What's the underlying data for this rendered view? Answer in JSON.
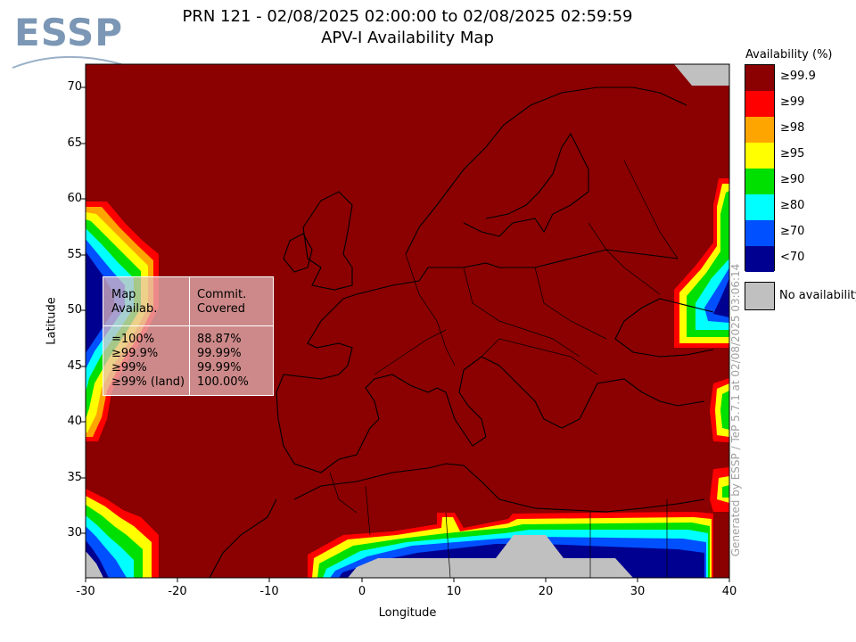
{
  "header": {
    "logo_text": "ESSP",
    "title_line1": "PRN 121 - 02/08/2025 02:00:00 to 02/08/2025 02:59:59",
    "title_line2": "APV-I Availability Map"
  },
  "axes": {
    "xlabel": "Longitude",
    "ylabel": "Latitude",
    "x_ticks": [
      "-30",
      "-20",
      "-10",
      "0",
      "10",
      "20",
      "30",
      "40"
    ],
    "y_ticks": [
      "70",
      "65",
      "60",
      "55",
      "50",
      "45",
      "40",
      "35",
      "30"
    ],
    "lon_range": [
      -30,
      40
    ],
    "lat_range": [
      26,
      72
    ]
  },
  "stats_table": {
    "col1_header": "Map\nAvailab.",
    "col2_header": "Commit.\nCovered",
    "rows": [
      {
        "label": "=100%",
        "value": "88.87%"
      },
      {
        "label": "≥99.9%",
        "value": "99.99%"
      },
      {
        "label": "≥99%",
        "value": "99.99%"
      },
      {
        "label": "≥99% (land)",
        "value": "100.00%"
      }
    ]
  },
  "legend": {
    "title": "Availability (%)",
    "items": [
      {
        "label": "≥99.9",
        "color": "#8b0000"
      },
      {
        "label": "≥99",
        "color": "#ff0000"
      },
      {
        "label": "≥98",
        "color": "#ffa500"
      },
      {
        "label": "≥95",
        "color": "#ffff00"
      },
      {
        "label": "≥90",
        "color": "#00e000"
      },
      {
        "label": "≥80",
        "color": "#00ffff"
      },
      {
        "label": "≥70",
        "color": "#0050ff"
      },
      {
        "label": "<70",
        "color": "#000090"
      }
    ],
    "no_availability_label": "No availability",
    "no_availability_color": "#c0c0c0"
  },
  "credit": "Generated by ESSP / TeP 5.7.1 at 02/08/2025 03:06:14"
}
